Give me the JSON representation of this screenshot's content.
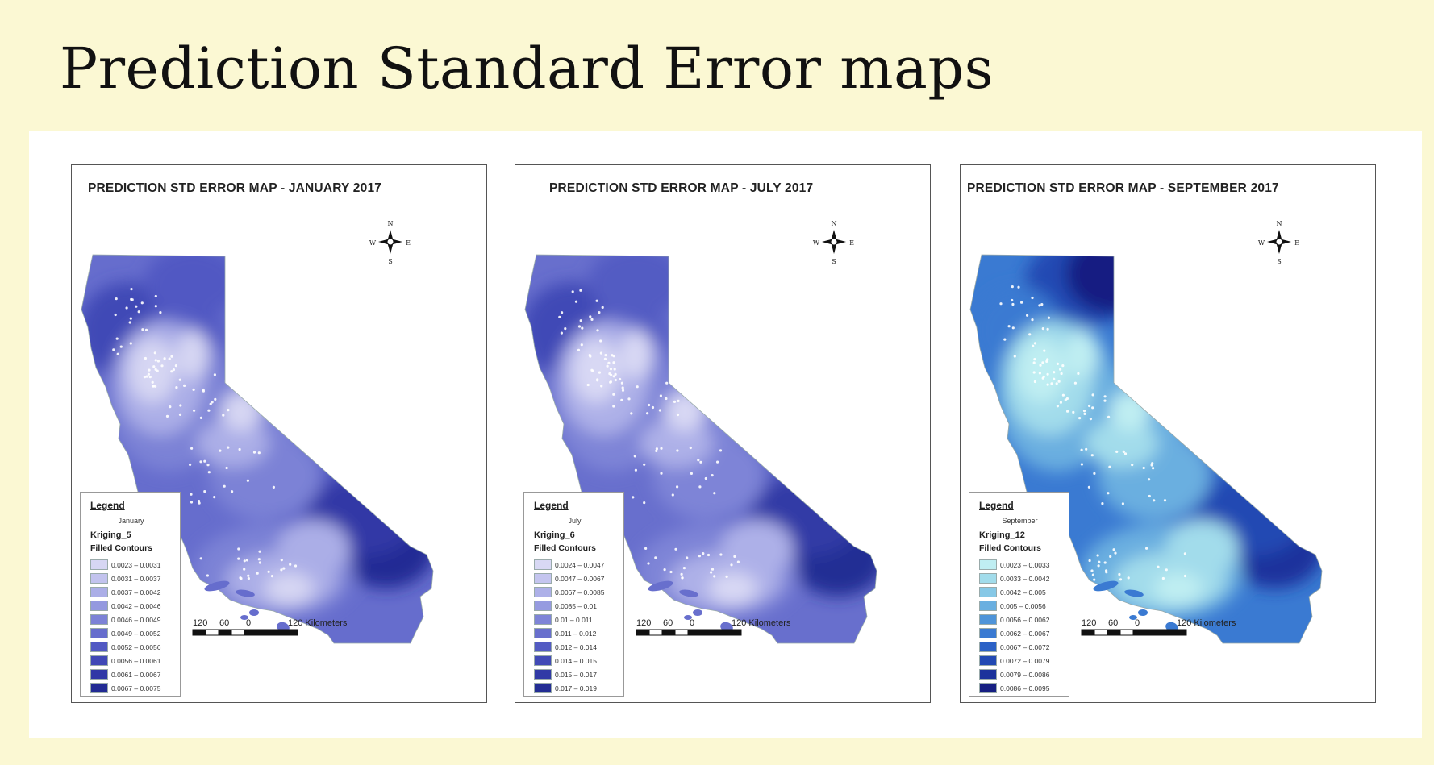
{
  "slide": {
    "title": "Prediction Standard Error maps"
  },
  "maps": [
    {
      "title": "PREDICTION STD ERROR MAP - JANUARY 2017",
      "legend": {
        "heading": "Legend",
        "month": "January",
        "layer": "Kriging_5",
        "type": "Filled Contours",
        "classes": [
          {
            "label": "0.0023 – 0.0031",
            "color": "#d6d6f3"
          },
          {
            "label": "0.0031 – 0.0037",
            "color": "#c2c3ee"
          },
          {
            "label": "0.0037 – 0.0042",
            "color": "#abaee7"
          },
          {
            "label": "0.0042 – 0.0046",
            "color": "#9499df"
          },
          {
            "label": "0.0046 – 0.0049",
            "color": "#7c82d6"
          },
          {
            "label": "0.0049 – 0.0052",
            "color": "#666dcd"
          },
          {
            "label": "0.0052 – 0.0056",
            "color": "#5159c3"
          },
          {
            "label": "0.0056 – 0.0061",
            "color": "#4048b6"
          },
          {
            "label": "0.0061 – 0.0067",
            "color": "#3038a6"
          },
          {
            "label": "0.0067 – 0.0075",
            "color": "#222b94"
          }
        ]
      },
      "north_arrow": {
        "n": "N",
        "s": "S",
        "e": "E",
        "w": "W"
      },
      "scale": {
        "labels": [
          "120",
          "60",
          "0",
          "120 Kilometers"
        ]
      }
    },
    {
      "title": "PREDICTION STD ERROR MAP - JULY 2017",
      "legend": {
        "heading": "Legend",
        "month": "July",
        "layer": "Kriging_6",
        "type": "Filled Contours",
        "classes": [
          {
            "label": "0.0024 – 0.0047",
            "color": "#d8d8f4"
          },
          {
            "label": "0.0047 – 0.0067",
            "color": "#c4c5ef"
          },
          {
            "label": "0.0067 – 0.0085",
            "color": "#adb0e8"
          },
          {
            "label": "0.0085 – 0.01",
            "color": "#969be0"
          },
          {
            "label": "0.01 – 0.011",
            "color": "#7e84d7"
          },
          {
            "label": "0.011 – 0.012",
            "color": "#686fcd"
          },
          {
            "label": "0.012 – 0.014",
            "color": "#535bc3"
          },
          {
            "label": "0.014 – 0.015",
            "color": "#414ab6"
          },
          {
            "label": "0.015 – 0.017",
            "color": "#313aa6"
          },
          {
            "label": "0.017 – 0.019",
            "color": "#232d94"
          }
        ]
      },
      "north_arrow": {
        "n": "N",
        "s": "S",
        "e": "E",
        "w": "W"
      },
      "scale": {
        "labels": [
          "120",
          "60",
          "0",
          "120 Kilometers"
        ]
      }
    },
    {
      "title": "PREDICTION STD ERROR MAP - SEPTEMBER 2017",
      "legend": {
        "heading": "Legend",
        "month": "September",
        "layer": "Kriging_12",
        "type": "Filled Contours",
        "classes": [
          {
            "label": "0.0023 – 0.0033",
            "color": "#bfeef2"
          },
          {
            "label": "0.0033 – 0.0042",
            "color": "#a2dceb"
          },
          {
            "label": "0.0042 – 0.005",
            "color": "#86c8e6"
          },
          {
            "label": "0.005 – 0.0056",
            "color": "#6aafe0"
          },
          {
            "label": "0.0056 – 0.0062",
            "color": "#4f94d9"
          },
          {
            "label": "0.0062 – 0.0067",
            "color": "#3a7ad2"
          },
          {
            "label": "0.0067 – 0.0072",
            "color": "#2b61c6"
          },
          {
            "label": "0.0072 – 0.0079",
            "color": "#2249b3"
          },
          {
            "label": "0.0079 – 0.0086",
            "color": "#1c339c"
          },
          {
            "label": "0.0086 – 0.0095",
            "color": "#161f82"
          }
        ]
      },
      "north_arrow": {
        "n": "N",
        "s": "S",
        "e": "E",
        "w": "W"
      },
      "scale": {
        "labels": [
          "120",
          "60",
          "0",
          "120 Kilometers"
        ]
      }
    }
  ]
}
